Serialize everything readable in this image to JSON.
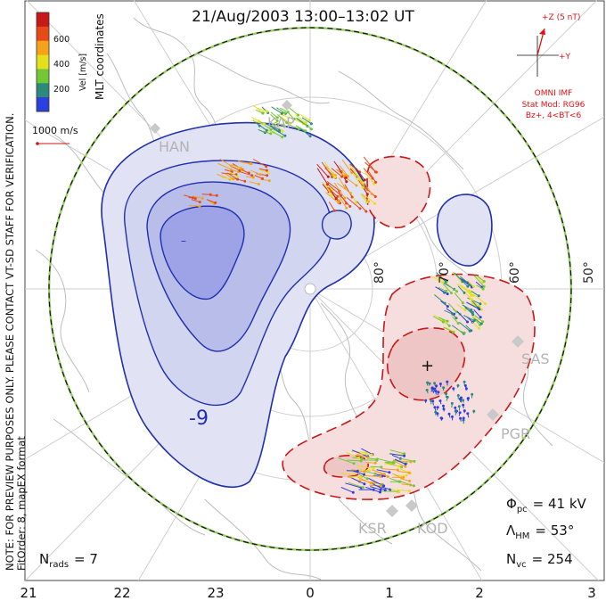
{
  "title": "21/Aug/2003 13:00–13:02 UT",
  "side_note_line1": "NOTE: FOR PREVIEW PURPOSES ONLY. PLEASE CONTACT VT-SD STAFF FOR VERIFICATION.",
  "side_note_line2": "FitOrder: 8, mapEX format",
  "colorbar": {
    "title": "MLT coordinates",
    "unit_label": "Vel [m/s]",
    "ticks": [
      "600",
      "400",
      "200"
    ],
    "colors": [
      "#2b3fe0",
      "#2b8a7c",
      "#72c834",
      "#e4e01c",
      "#f5a21a",
      "#e64a16",
      "#c81818"
    ]
  },
  "scale_label": "1000 m/s",
  "imf": {
    "z_label": "+Z (5 nT)",
    "y_label": "+Y",
    "model_line1": "OMNI IMF",
    "model_line2": "Stat Mod: RG96",
    "model_line3": "Bz+, 4<BT<6",
    "color": "#e01010"
  },
  "stations": [
    "HAN",
    "KAP",
    "SAS",
    "PGR",
    "KSR",
    "KOD"
  ],
  "latitude_labels": [
    "80°",
    "70°",
    "60°",
    "50°"
  ],
  "contour_label": "-9",
  "stats": {
    "phi_symbol": "Φ",
    "phi_sub": "pc",
    "phi_value": "= 41 kV",
    "lambda_symbol": "Λ",
    "lambda_sub": "HM",
    "lambda_value": "= 53°",
    "nvc_symbol": "N",
    "nvc_sub": "vc",
    "nvc_value": "= 254",
    "nrads_symbol": "N",
    "nrads_sub": "rads",
    "nrads_value": "= 7"
  },
  "mlt_labels": [
    "21",
    "22",
    "23",
    "0",
    "1",
    "2",
    "3"
  ],
  "convection_colors": {
    "negative": "#1f2fb0",
    "negative_fill": "#dfe2f3",
    "positive": "#c81818",
    "positive_fill": "#f6dede"
  }
}
